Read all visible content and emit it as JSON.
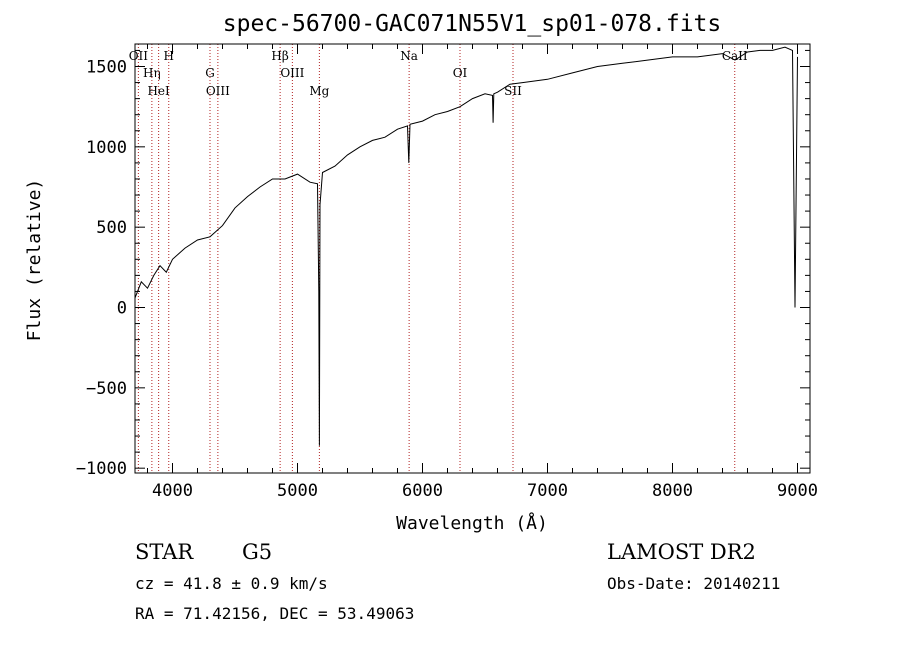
{
  "chart_data": {
    "type": "line",
    "title": "spec-56700-GAC071N55V1_sp01-078.fits",
    "xlabel": "Wavelength (Å)",
    "ylabel": "Flux (relative)",
    "xlim": [
      3700,
      9100
    ],
    "ylim": [
      -1030,
      1640
    ],
    "x_ticks": [
      4000,
      5000,
      6000,
      7000,
      8000,
      9000
    ],
    "x_tick_labels": [
      "4000",
      "5000",
      "6000",
      "7000",
      "8000",
      "9000"
    ],
    "y_ticks": [
      -1000,
      -500,
      0,
      500,
      1000,
      1500
    ],
    "y_tick_labels": [
      "−1000",
      "−500",
      "0",
      "500",
      "1000",
      "1500"
    ],
    "grid": false,
    "line_color": "#000000",
    "marker_color": "#b22222",
    "series": [
      {
        "x": [
          3700,
          3750,
          3800,
          3850,
          3900,
          3950,
          4000,
          4100,
          4200,
          4300,
          4400,
          4500,
          4600,
          4700,
          4800,
          4900,
          5000,
          5100,
          5160,
          5170,
          5175,
          5180,
          5200,
          5300,
          5400,
          5500,
          5600,
          5700,
          5800,
          5880,
          5890,
          5900,
          6000,
          6100,
          6200,
          6300,
          6400,
          6500,
          6560,
          6565,
          6570,
          6600,
          6700,
          6800,
          7000,
          7200,
          7400,
          7600,
          7800,
          8000,
          8200,
          8400,
          8500,
          8600,
          8700,
          8800,
          8900,
          8960,
          8980,
          9000
        ],
        "y": [
          60,
          160,
          120,
          200,
          260,
          220,
          300,
          370,
          420,
          440,
          510,
          620,
          690,
          750,
          800,
          800,
          830,
          780,
          770,
          100,
          -860,
          640,
          840,
          880,
          950,
          1000,
          1040,
          1060,
          1110,
          1130,
          900,
          1140,
          1160,
          1200,
          1220,
          1250,
          1300,
          1330,
          1320,
          1150,
          1330,
          1340,
          1390,
          1400,
          1420,
          1460,
          1500,
          1520,
          1540,
          1560,
          1560,
          1580,
          1540,
          1590,
          1600,
          1600,
          1620,
          1600,
          0,
          1560
        ]
      }
    ],
    "lines": [
      {
        "w": 3727,
        "labels": [
          "OII"
        ]
      },
      {
        "w": 3835,
        "labels": [
          "Hη"
        ]
      },
      {
        "w": 3889,
        "labels": [
          "HeI"
        ]
      },
      {
        "w": 3970,
        "labels": [
          "H"
        ]
      },
      {
        "w": 4300,
        "labels": [
          "G"
        ]
      },
      {
        "w": 4363,
        "labels": [
          "OIII"
        ]
      },
      {
        "w": 4861,
        "labels": [
          "Hβ"
        ]
      },
      {
        "w": 4959,
        "labels": [
          "OIII"
        ]
      },
      {
        "w": 5175,
        "labels": [
          "Mg"
        ]
      },
      {
        "w": 5893,
        "labels": [
          "Na"
        ]
      },
      {
        "w": 6300,
        "labels": [
          "OI"
        ]
      },
      {
        "w": 6724,
        "labels": [
          "SII"
        ]
      },
      {
        "w": 8498,
        "labels": [
          "CaII"
        ]
      }
    ]
  },
  "info": {
    "object_type": "STAR",
    "subclass": "G5",
    "survey": "LAMOST DR2",
    "cz": "cz = 41.8 ± 0.9 km/s",
    "obs_date": "Obs-Date: 20140211",
    "coords": "RA =  71.42156, DEC =  53.49063"
  }
}
